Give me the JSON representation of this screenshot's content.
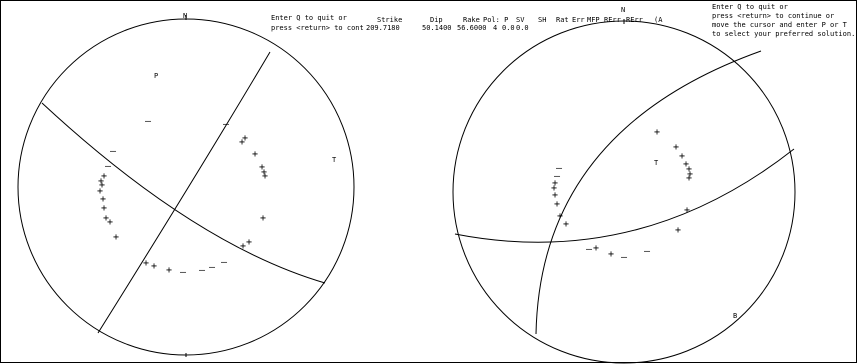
{
  "left_plot": {
    "north_label": "N",
    "p_label": "P",
    "t_label": "T"
  },
  "right_plot": {
    "north_label": "N",
    "t_label": "T",
    "b_label": "B"
  },
  "prompt_left": {
    "line1": "Enter Q to quit or",
    "line2": "press <return> to cont"
  },
  "solution_table": {
    "headers": [
      "Strike",
      "Dip",
      "Rake",
      "Pol: P",
      "SV",
      "SH",
      "Rat",
      "Err",
      "MFP",
      "RErr",
      "RErr",
      "(A"
    ],
    "values": [
      "209.7180",
      "50.1400",
      "56.6000",
      "4",
      "0.0",
      "0.0"
    ]
  },
  "prompt_right": {
    "line1": "Enter Q to quit or",
    "line2": "press <return> to continue or",
    "line3": "move the cursor and enter P or T",
    "line4": "to select your preferred solution."
  },
  "symbols": {
    "compression": "+",
    "dilatation": "–"
  },
  "colors": {
    "ink": "#000000",
    "background": "#ffffff"
  }
}
